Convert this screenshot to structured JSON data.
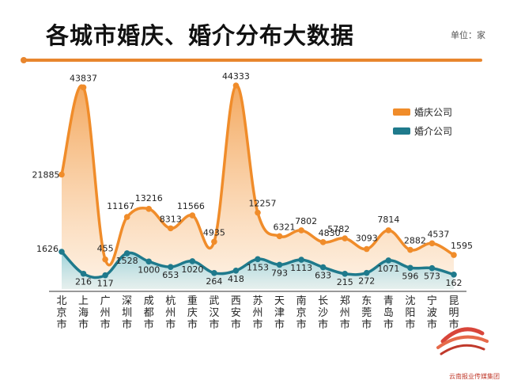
{
  "header": {
    "title": "各城市婚庆、婚介分布大数据",
    "unit": "单位：家"
  },
  "colors": {
    "accent": "#e8862e",
    "wedding": "#f08c2a",
    "matchmaking": "#1f7a8c"
  },
  "chart_data": {
    "type": "line",
    "title": "各城市婚庆、婚介分布大数据",
    "xlabel": "",
    "ylabel": "",
    "unit": "单位：家",
    "categories": [
      "北京市",
      "上海市",
      "广州市",
      "深圳市",
      "成都市",
      "杭州市",
      "重庆市",
      "武汉市",
      "西安市",
      "苏州市",
      "天津市",
      "南京市",
      "长沙市",
      "郑州市",
      "东莞市",
      "青岛市",
      "沈阳市",
      "宁波市",
      "昆明市"
    ],
    "series": [
      {
        "name": "婚庆公司",
        "color": "#f08c2a",
        "values": [
          21885,
          43837,
          455,
          11167,
          13216,
          8313,
          11566,
          4935,
          44333,
          12257,
          6321,
          7802,
          4830,
          5782,
          3093,
          7814,
          2882,
          4537,
          1595
        ],
        "labels": [
          "21885",
          "43837",
          "455",
          "11167",
          "13216",
          "8313",
          "11566",
          "4935",
          "44333",
          "12257",
          "6321",
          "7802",
          "4830",
          "5782",
          "3093",
          "7814",
          "2882",
          "4537",
          "1595"
        ]
      },
      {
        "name": "婚介公司",
        "color": "#1f7a8c",
        "values": [
          1626,
          216,
          117,
          1528,
          1000,
          653,
          1020,
          264,
          418,
          1153,
          793,
          1113,
          633,
          215,
          272,
          1071,
          596,
          573,
          162
        ],
        "labels": [
          "1626",
          "216",
          "117",
          "1528",
          "1000",
          "653",
          "1020",
          "264",
          "418",
          "1153",
          "793",
          "1113",
          "633",
          "215",
          "272",
          "1071",
          "596",
          "573",
          "162"
        ]
      }
    ],
    "legend_position": "top-right",
    "grid": false
  },
  "watermark": {
    "text": "云南报业传媒集团"
  }
}
